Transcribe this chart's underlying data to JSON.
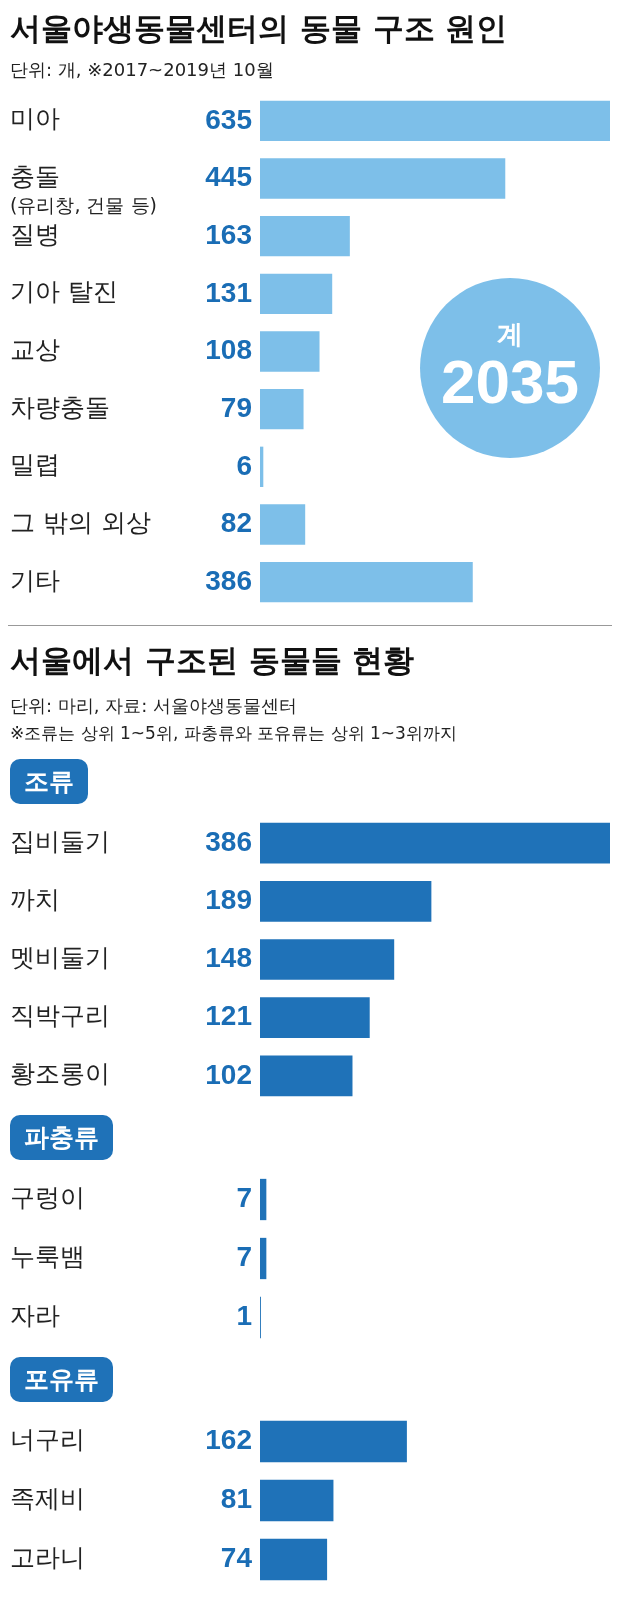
{
  "chart_data": [
    {
      "type": "bar",
      "orientation": "horizontal",
      "title": "서울야생동물센터의 동물 구조 원인",
      "subtitle": "단위: 개, ※2017~2019년 10월",
      "categories": [
        "미아",
        "충돌\n(유리창, 건물 등)",
        "질병",
        "기아 탈진",
        "교상",
        "차량충돌",
        "밀렵",
        "그 밖의 외상",
        "기타"
      ],
      "values": [
        635,
        445,
        163,
        131,
        108,
        79,
        6,
        82,
        386
      ],
      "color": "#7dbfe9",
      "data_labels": true,
      "annotations": [
        "계",
        "2035"
      ]
    },
    {
      "type": "other",
      "title": "서울에서 구조된 동물들 현황",
      "subtitle": "단위: 마리, 자료: 서울야생동물센터",
      "annotations": [
        "※조류는 상위 1~5위, 파충류와 포유류는 상위 1~3위까지"
      ]
    },
    {
      "type": "bar",
      "orientation": "horizontal",
      "title": "조류",
      "categories": [
        "집비둘기",
        "까치",
        "멧비둘기",
        "직박구리",
        "황조롱이"
      ],
      "values": [
        386,
        189,
        148,
        121,
        102
      ],
      "color": "#1f72b8",
      "data_labels": true
    },
    {
      "type": "bar",
      "orientation": "horizontal",
      "title": "파충류",
      "categories": [
        "구렁이",
        "누룩뱀",
        "자라"
      ],
      "values": [
        7,
        7,
        1
      ],
      "color": "#1f72b8",
      "data_labels": true
    },
    {
      "type": "bar",
      "orientation": "horizontal",
      "title": "포유류",
      "categories": [
        "너구리",
        "족제비",
        "고라니"
      ],
      "values": [
        162,
        81,
        74
      ],
      "color": "#1f72b8",
      "data_labels": true
    }
  ]
}
